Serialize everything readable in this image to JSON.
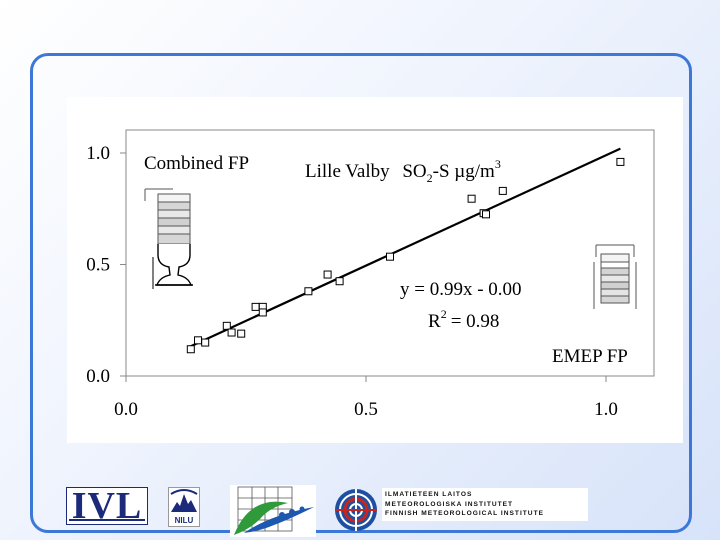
{
  "chart_data": {
    "type": "scatter",
    "title": "Lille Valby",
    "title_species": "SO",
    "title_sub": "2",
    "title_units": "-S µg/m",
    "title_sup": "3",
    "xlim": [
      0,
      1.0
    ],
    "ylim": [
      0,
      1.0
    ],
    "x_ticks": [
      "0.0",
      "0.5",
      "1.0"
    ],
    "y_ticks": [
      "0.0",
      "0.5",
      "1.0"
    ],
    "x_tick_values": [
      0,
      0.5,
      1.0
    ],
    "y_tick_values": [
      0,
      0.5,
      1.0
    ],
    "grid": false,
    "x": [
      0.135,
      0.15,
      0.165,
      0.21,
      0.22,
      0.24,
      0.27,
      0.285,
      0.285,
      0.38,
      0.42,
      0.445,
      0.55,
      0.72,
      0.745,
      0.75,
      0.785,
      1.03
    ],
    "y": [
      0.12,
      0.16,
      0.15,
      0.225,
      0.195,
      0.19,
      0.31,
      0.31,
      0.285,
      0.38,
      0.455,
      0.425,
      0.535,
      0.795,
      0.73,
      0.725,
      0.83,
      0.96
    ],
    "fit": {
      "slope": 0.99,
      "intercept": 0.0,
      "x_range": [
        0.135,
        1.03
      ]
    },
    "equation": "y = 0.99x - 0.00",
    "r2_label": "R",
    "r2_sup": "2",
    "r2_value": "= 0.98",
    "annotation_left": "Combined FP",
    "annotation_right": "EMEP FP",
    "series_color": "#000000"
  },
  "logos": {
    "ivl": "IVL",
    "nilu": "NILU",
    "fmi_lines": [
      "ILMATIETEEN LAITOS",
      "METEOROLOGISKA INSTITUTET",
      "FINNISH METEOROLOGICAL INSTITUTE"
    ]
  },
  "colors": {
    "frame": "#3b78d8",
    "ivl": "#1b2a7a",
    "leaf_green": "#2e9a3a",
    "leaf_blue": "#1c58b0",
    "fmi_red": "#c8261c",
    "fmi_blue": "#1f4fa0"
  }
}
